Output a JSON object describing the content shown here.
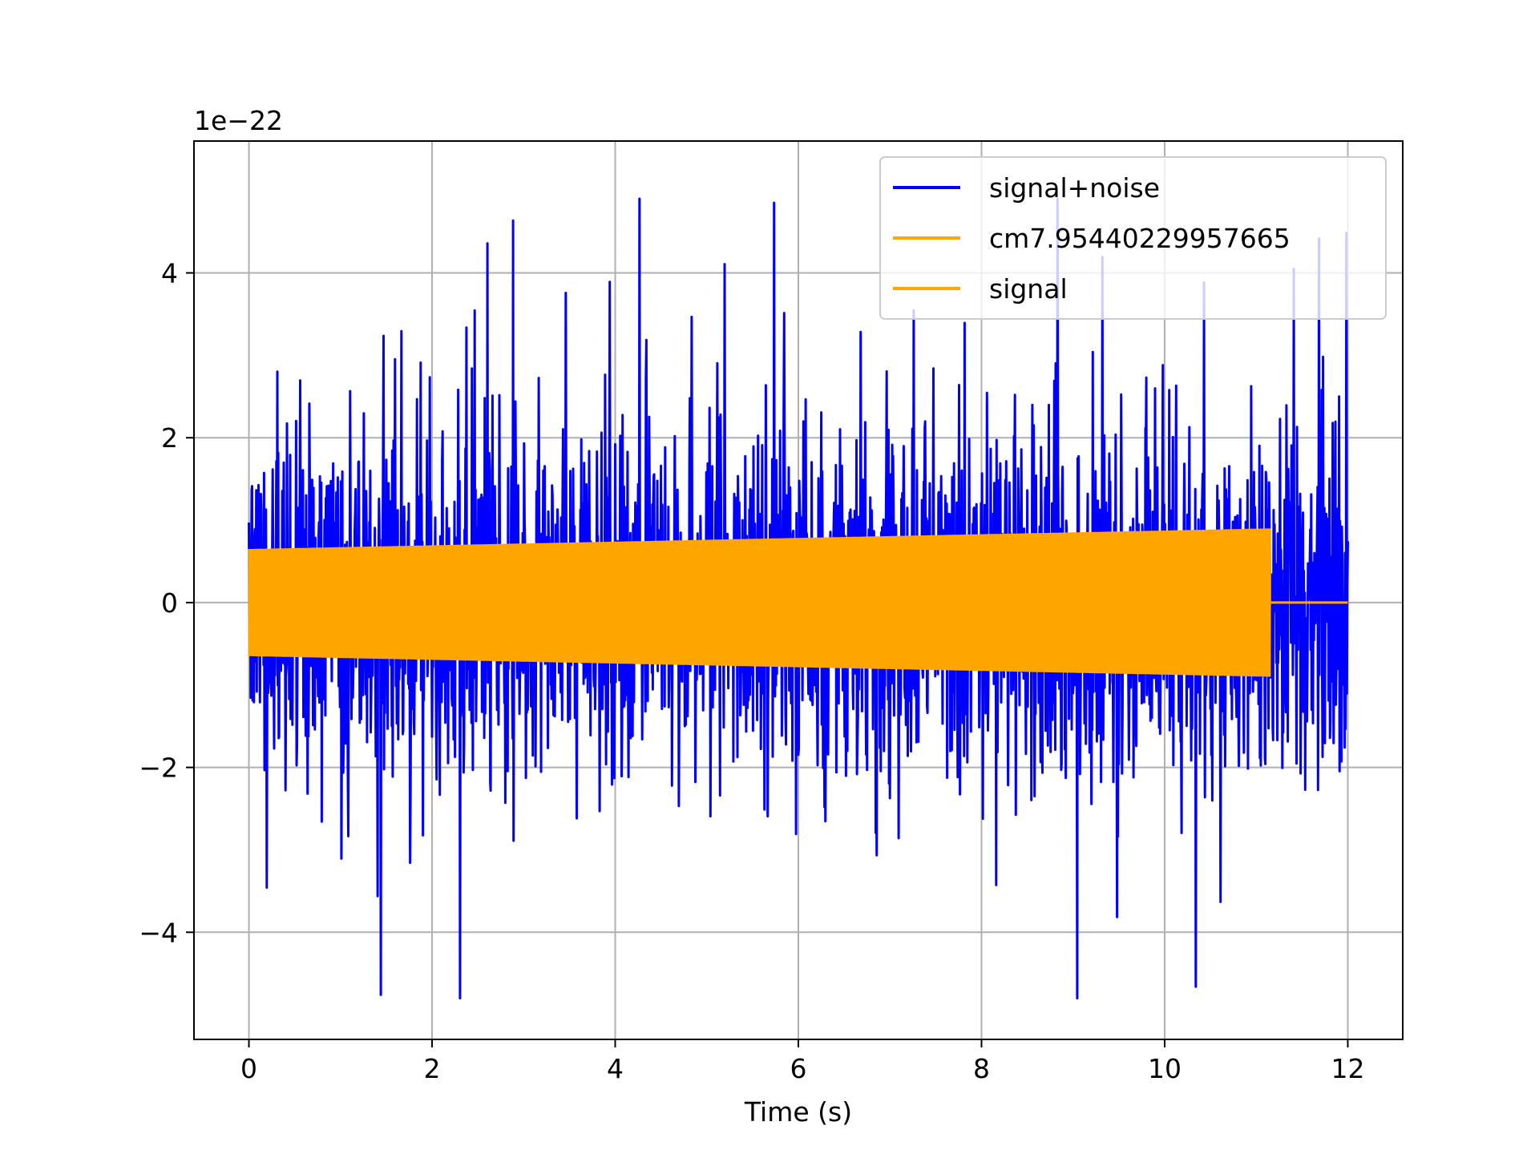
{
  "chart_data": {
    "type": "line",
    "title": "",
    "xlabel": "Time (s)",
    "ylabel": "",
    "y_offset_label": "1e−22",
    "xlim": [
      -0.6,
      12.6
    ],
    "ylim": [
      -5.3,
      5.6
    ],
    "x_ticks": [
      0,
      2,
      4,
      6,
      8,
      10,
      12
    ],
    "x_tick_labels": [
      "0",
      "2",
      "4",
      "6",
      "8",
      "10",
      "12"
    ],
    "y_ticks": [
      -4,
      -2,
      0,
      2,
      4
    ],
    "y_tick_labels": [
      "−4",
      "−2",
      "0",
      "2",
      "4"
    ],
    "grid": true,
    "legend_position": "top-right",
    "series": [
      {
        "name": "signal+noise",
        "color": "#0000ff",
        "x_range": [
          0,
          12
        ],
        "peak_envelope_max": 4.9,
        "peak_envelope_min": -4.8
      },
      {
        "name": "cm7.95440229957665",
        "color": "#ffa500"
      },
      {
        "name": "signal",
        "color": "#ffa500",
        "x_range": [
          0,
          11.15
        ],
        "amplitude_start": 0.65,
        "amplitude_end": 0.9,
        "value_after_end": 0
      }
    ]
  }
}
